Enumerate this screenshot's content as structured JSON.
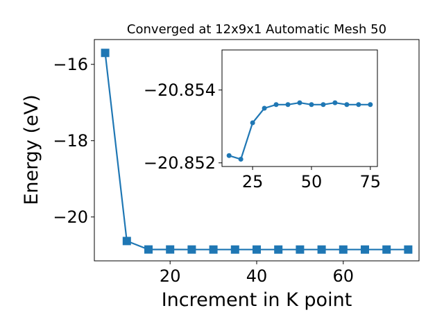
{
  "chart_data": [
    {
      "type": "line",
      "title": "Converged at 12x9x1 Automatic Mesh 50",
      "xlabel": "Increment in K point",
      "ylabel": "Energy (eV)",
      "xlim": [
        2.5,
        77.5
      ],
      "ylim": [
        -21.15,
        -15.35
      ],
      "xticks": [
        20,
        40,
        60
      ],
      "yticks": [
        -16,
        -18,
        -20
      ],
      "xtick_labels": [
        "20",
        "40",
        "60"
      ],
      "ytick_labels": [
        "−16",
        "−18",
        "−20"
      ],
      "marker": "square",
      "color": "#1f77b4",
      "grid": false,
      "series": [
        {
          "x": [
            5,
            10,
            15,
            20,
            25,
            30,
            35,
            40,
            45,
            50,
            55,
            60,
            65,
            70,
            75
          ],
          "y": [
            -15.7,
            -20.63,
            -20.852,
            -20.852,
            -20.853,
            -20.8535,
            -20.8537,
            -20.8537,
            -20.8539,
            -20.8537,
            -20.8537,
            -20.8538,
            -20.8537,
            -20.8537,
            -20.8537
          ]
        }
      ]
    },
    {
      "type": "line",
      "role": "inset",
      "xlim": [
        12,
        78
      ],
      "ylim": [
        -20.8519,
        -20.8551
      ],
      "xticks": [
        25,
        50,
        75
      ],
      "yticks": [
        -20.854,
        -20.852
      ],
      "xtick_labels": [
        "25",
        "50",
        "75"
      ],
      "ytick_labels": [
        "−20.854",
        "−20.852"
      ],
      "marker": "circle",
      "color": "#1f77b4",
      "grid": false,
      "series": [
        {
          "x": [
            15,
            20,
            25,
            30,
            35,
            40,
            45,
            50,
            55,
            60,
            65,
            70,
            75
          ],
          "y": [
            -20.8522,
            -20.8521,
            -20.8531,
            -20.8535,
            -20.8536,
            -20.8536,
            -20.85365,
            -20.8536,
            -20.8536,
            -20.85365,
            -20.8536,
            -20.8536,
            -20.8536
          ]
        }
      ]
    }
  ]
}
